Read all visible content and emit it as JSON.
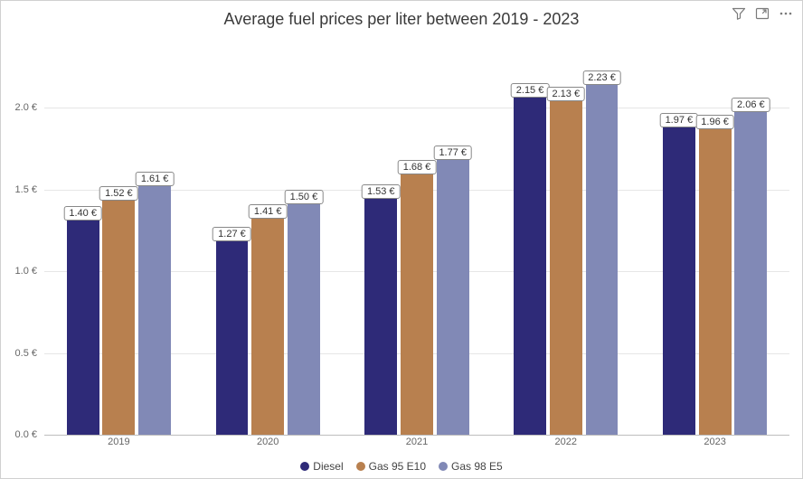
{
  "chart": {
    "type": "bar",
    "title": "Average fuel prices per liter between 2019 - 2023",
    "title_fontsize": 18,
    "title_color": "#3a3a3a",
    "background_color": "#ffffff",
    "border_color": "#d0d0d0",
    "grid_color": "#e6e6e6",
    "baseline_color": "#bdbdbd",
    "axis_label_color": "#666666",
    "axis_label_fontsize": 11,
    "legend_fontsize": 12,
    "value_label_fontsize": 11,
    "value_label_bg": "#ffffff",
    "value_label_border": "#888888",
    "value_suffix": " €",
    "ylim": [
      0.0,
      2.4
    ],
    "yticks": [
      0.0,
      0.5,
      1.0,
      1.5,
      2.0
    ],
    "ytick_labels": [
      "0.0 €",
      "0.5 €",
      "1.0 €",
      "1.5 €",
      "2.0 €"
    ],
    "categories": [
      "2019",
      "2020",
      "2021",
      "2022",
      "2023"
    ],
    "series": [
      {
        "name": "Diesel",
        "color": "#2e2a78",
        "values": [
          1.4,
          1.27,
          1.53,
          2.15,
          1.97
        ]
      },
      {
        "name": "Gas 95 E10",
        "color": "#b8804f",
        "values": [
          1.52,
          1.41,
          1.68,
          2.13,
          1.96
        ]
      },
      {
        "name": "Gas 98 E5",
        "color": "#8189b6",
        "values": [
          1.61,
          1.5,
          1.77,
          2.23,
          2.06
        ]
      }
    ],
    "group_gap_ratio": 0.3,
    "bar_gap_ratio": 0.1
  },
  "toolbar": {
    "filter_icon_color": "#7a7a7a",
    "focus_icon_color": "#7a7a7a",
    "more_icon_color": "#7a7a7a"
  }
}
